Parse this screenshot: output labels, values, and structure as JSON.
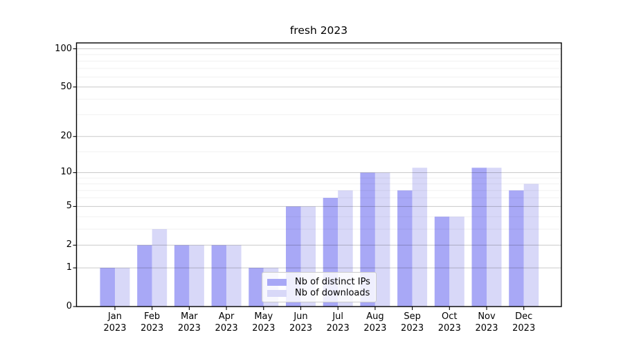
{
  "chart_data": {
    "type": "bar",
    "title": "fresh 2023",
    "categories": [
      "Jan",
      "Feb",
      "Mar",
      "Apr",
      "May",
      "Jun",
      "Jul",
      "Aug",
      "Sep",
      "Oct",
      "Nov",
      "Dec"
    ],
    "year": "2023",
    "series": [
      {
        "name": "Nb of distinct IPs",
        "color": "#a8a8f6",
        "values": [
          1,
          2,
          2,
          2,
          1,
          5,
          6,
          10,
          7,
          4,
          11,
          7
        ]
      },
      {
        "name": "Nb of downloads",
        "color": "#d8d8f8",
        "values": [
          1,
          3,
          2,
          2,
          1,
          5,
          7,
          10,
          11,
          4,
          11,
          8
        ]
      }
    ],
    "yscale": "log1p",
    "ylim": [
      0,
      111
    ],
    "yticks": [
      0,
      1,
      2,
      5,
      10,
      20,
      50,
      100
    ],
    "yticks_minor": [
      3,
      4,
      6,
      7,
      8,
      9,
      15,
      30,
      40,
      60,
      70,
      80,
      90
    ],
    "grid": true,
    "legend_position": "lower center",
    "colors": {
      "grid_major": "rgba(0,0,0,0.21)",
      "grid_minor": "rgba(0,0,0,0.055)",
      "spine": "#000000",
      "background": "#ffffff"
    }
  }
}
